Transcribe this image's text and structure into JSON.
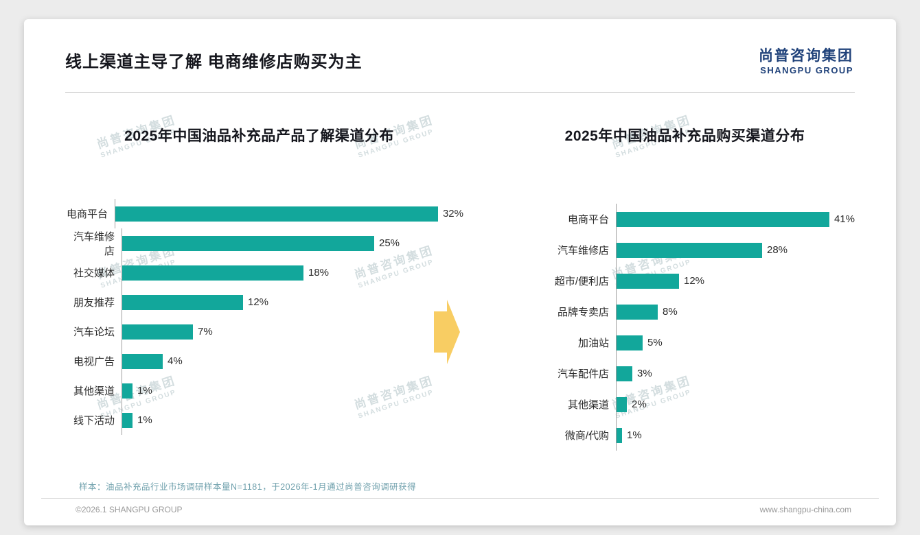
{
  "page": {
    "title": "线上渠道主导了解 电商维修店购买为主",
    "logo": {
      "cn": "尚普咨询集团",
      "en": "SHANGPU GROUP"
    },
    "watermark": {
      "cn": "尚普咨询集团",
      "en": "SHANGPU GROUP"
    },
    "note": "样本：油品补充品行业市场调研样本量N=1181，于2026年-1月通过尚普咨询调研获得",
    "footer": {
      "copyright": "©2026.1 SHANGPU GROUP",
      "website": "www.shangpu-china.com"
    }
  },
  "colors": {
    "bar": "#12A79B",
    "logo_navy": "#20427A",
    "arrow_yellow": "#F8CD63",
    "note_teal": "#6FA0AC",
    "title_dark": "#15161D"
  },
  "chart_data": [
    {
      "type": "bar",
      "orientation": "horizontal",
      "title": "2025年中国油品补充品产品了解渠道分布",
      "categories": [
        "电商平台",
        "汽车维修店",
        "社交媒体",
        "朋友推荐",
        "汽车论坛",
        "电视广告",
        "其他渠道",
        "线下活动"
      ],
      "values": [
        32,
        25,
        18,
        12,
        7,
        4,
        1,
        1
      ],
      "unit": "%",
      "xlim": [
        0,
        32
      ],
      "grid": false,
      "legend": false
    },
    {
      "type": "bar",
      "orientation": "horizontal",
      "title": "2025年中国油品补充品购买渠道分布",
      "categories": [
        "电商平台",
        "汽车维修店",
        "超市/便利店",
        "品牌专卖店",
        "加油站",
        "汽车配件店",
        "其他渠道",
        "微商/代购"
      ],
      "values": [
        41,
        28,
        12,
        8,
        5,
        3,
        2,
        1
      ],
      "unit": "%",
      "xlim": [
        0,
        41
      ],
      "grid": false,
      "legend": false
    }
  ]
}
